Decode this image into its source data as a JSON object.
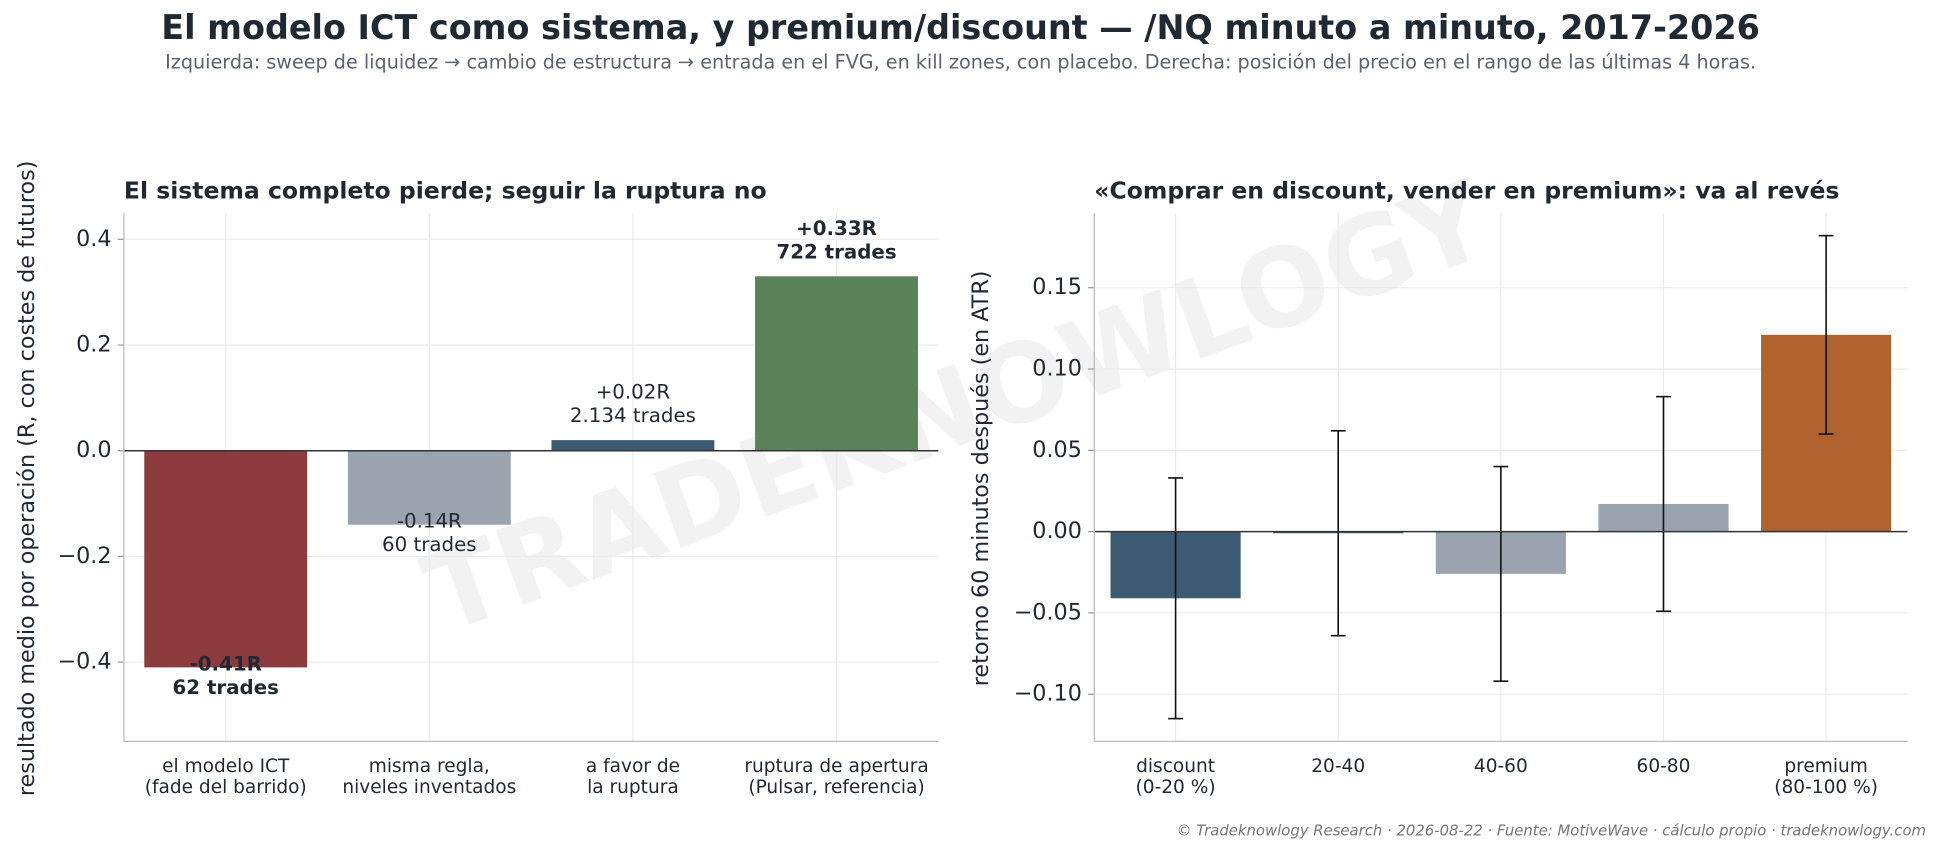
{
  "page": {
    "title": "El modelo ICT como sistema, y premium/discount — /NQ minuto a minuto, 2017-2026",
    "subtitle": "Izquierda: sweep de liquidez → cambio de estructura → entrada en el FVG, en kill zones, con placebo. Derecha: posición del precio en el rango de las últimas 4 horas.",
    "watermark": "TRADEKNOWLOGY",
    "footer": "© Tradeknowlogy Research   ·   2026-08-22   ·   Fuente: MotiveWave · cálculo propio   ·   tradeknowlogy.com"
  },
  "chart_data": [
    {
      "type": "bar",
      "title": "El sistema completo pierde; seguir la ruptura no",
      "y_label": "resultado medio por operación (R, con costes de futuros)",
      "categories": [
        [
          "el modelo ICT",
          "(fade del barrido)"
        ],
        [
          "misma regla,",
          "niveles inventados"
        ],
        [
          "a favor de",
          "la ruptura"
        ],
        [
          "ruptura de apertura",
          "(Pulsar, referencia)"
        ]
      ],
      "values": [
        -0.41,
        -0.14,
        0.02,
        0.33
      ],
      "value_labels": [
        "-0.41R",
        "-0.14R",
        "+0.02R",
        "+0.33R"
      ],
      "notes": [
        "62 trades",
        "60 trades",
        "2.134 trades",
        "722 trades"
      ],
      "bold_labels": [
        true,
        false,
        false,
        true
      ],
      "colors": [
        "#8b3a3e",
        "#9aa3ae",
        "#3d5a73",
        "#5b8159"
      ],
      "ylim": [
        -0.55,
        0.45
      ],
      "yticks": [
        {
          "value": -0.4,
          "label": "−0.4"
        },
        {
          "value": -0.2,
          "label": "−0.2"
        },
        {
          "value": 0,
          "label": "0.0"
        },
        {
          "value": 0.2,
          "label": "0.2"
        },
        {
          "value": 0.4,
          "label": "0.4"
        }
      ],
      "grid": true
    },
    {
      "type": "bar",
      "title": "«Comprar en discount, vender en premium»: va al revés",
      "y_label": "retorno 60 minutos después (en ATR)",
      "categories": [
        [
          "discount",
          "(0-20 %)"
        ],
        [
          "20-40"
        ],
        [
          "40-60"
        ],
        [
          "60-80"
        ],
        [
          "premium",
          "(80-100 %)"
        ]
      ],
      "values": [
        -0.041,
        -0.001,
        -0.026,
        0.017,
        0.121
      ],
      "errors": [
        0.074,
        0.063,
        0.066,
        0.066,
        0.061
      ],
      "colors": [
        "#3d5a73",
        "#3d5a73",
        "#9aa3ae",
        "#9aa3ae",
        "#b0622e"
      ],
      "ylim": [
        -0.129,
        0.196
      ],
      "yticks": [
        {
          "value": -0.1,
          "label": "−0.10"
        },
        {
          "value": -0.05,
          "label": "−0.05"
        },
        {
          "value": 0,
          "label": "0.00"
        },
        {
          "value": 0.05,
          "label": "0.05"
        },
        {
          "value": 0.1,
          "label": "0.10"
        },
        {
          "value": 0.15,
          "label": "0.15"
        }
      ],
      "grid": true
    }
  ]
}
